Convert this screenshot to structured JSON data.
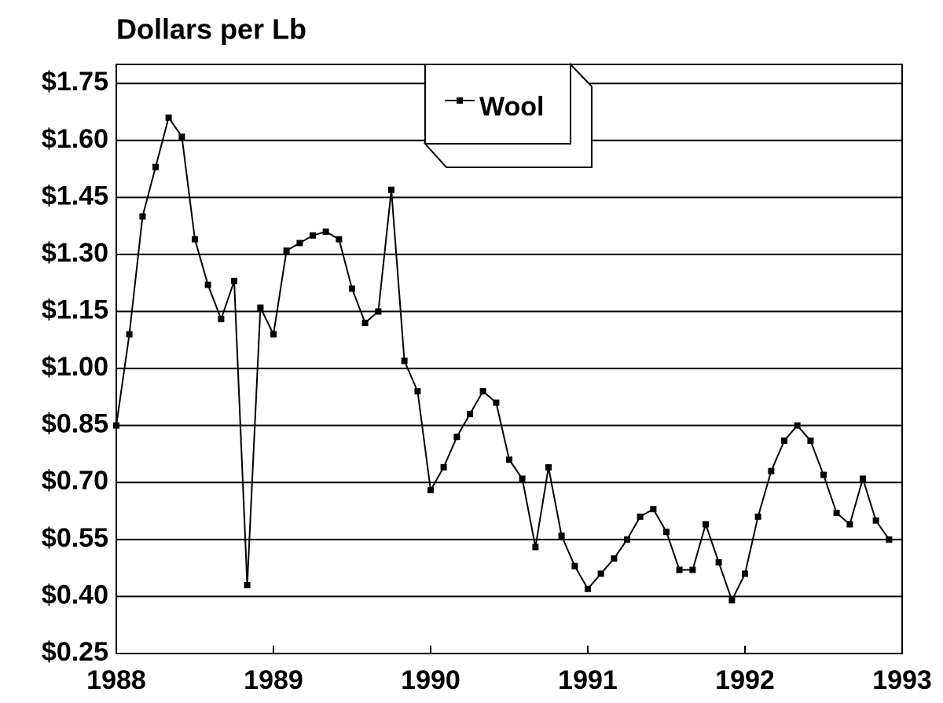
{
  "chart_data": {
    "type": "line",
    "title": "Dollars per Lb",
    "x": [
      1988,
      1988.083,
      1988.167,
      1988.25,
      1988.333,
      1988.417,
      1988.5,
      1988.583,
      1988.667,
      1988.75,
      1988.833,
      1988.917,
      1989,
      1989.083,
      1989.167,
      1989.25,
      1989.333,
      1989.417,
      1989.5,
      1989.583,
      1989.667,
      1989.75,
      1989.833,
      1989.917,
      1990,
      1990.083,
      1990.167,
      1990.25,
      1990.333,
      1990.417,
      1990.5,
      1990.583,
      1990.667,
      1990.75,
      1990.833,
      1990.917,
      1991,
      1991.083,
      1991.167,
      1991.25,
      1991.333,
      1991.417,
      1991.5,
      1991.583,
      1991.667,
      1991.75,
      1991.833,
      1991.917,
      1992,
      1992.083,
      1992.167,
      1992.25,
      1992.333,
      1992.417,
      1992.5,
      1992.583,
      1992.667,
      1992.75,
      1992.833,
      1992.917
    ],
    "series": [
      {
        "name": "Wool",
        "color": "#000000",
        "values": [
          0.85,
          1.09,
          1.4,
          1.53,
          1.66,
          1.61,
          1.34,
          1.22,
          1.13,
          1.23,
          0.43,
          1.16,
          1.09,
          1.31,
          1.33,
          1.35,
          1.36,
          1.34,
          1.21,
          1.12,
          1.15,
          1.47,
          1.02,
          0.94,
          0.68,
          0.74,
          0.82,
          0.88,
          0.94,
          0.91,
          0.76,
          0.71,
          0.53,
          0.74,
          0.56,
          0.48,
          0.42,
          0.46,
          0.5,
          0.55,
          0.61,
          0.63,
          0.57,
          0.47,
          0.47,
          0.59,
          0.49,
          0.39,
          0.46,
          0.61,
          0.73,
          0.81,
          0.85,
          0.81,
          0.72,
          0.62,
          0.59,
          0.71,
          0.6,
          0.55
        ]
      }
    ],
    "xlim": [
      1988,
      1993
    ],
    "xticks": [
      1988,
      1989,
      1990,
      1991,
      1992,
      1993
    ],
    "ylim": [
      0.25,
      1.8
    ],
    "yticks": [
      {
        "value": 0.25,
        "label": "$0.25"
      },
      {
        "value": 0.4,
        "label": "$0.40"
      },
      {
        "value": 0.55,
        "label": "$0.55"
      },
      {
        "value": 0.7,
        "label": "$0.70"
      },
      {
        "value": 0.85,
        "label": "$0.85"
      },
      {
        "value": 1.0,
        "label": "$1.00"
      },
      {
        "value": 1.15,
        "label": "$1.15"
      },
      {
        "value": 1.3,
        "label": "$1.30"
      },
      {
        "value": 1.45,
        "label": "$1.45"
      },
      {
        "value": 1.6,
        "label": "$1.60"
      },
      {
        "value": 1.75,
        "label": "$1.75"
      }
    ],
    "grid": true
  }
}
